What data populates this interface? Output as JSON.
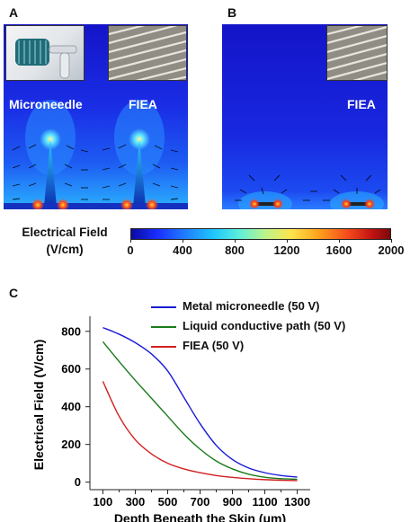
{
  "panels": {
    "a": {
      "letter": "A",
      "label_left": "Microneedle",
      "label_right": "FIEA"
    },
    "b": {
      "letter": "B",
      "label_right": "FIEA"
    },
    "c": {
      "letter": "C"
    }
  },
  "colorbar": {
    "title_line1": "Electrical Field",
    "title_line2": "(V/cm)",
    "ticks": [
      "0",
      "400",
      "800",
      "1200",
      "1600",
      "2000"
    ],
    "range": [
      0,
      2000
    ]
  },
  "chart_data": {
    "type": "line",
    "xlabel": "Depth Beneath the Skin (μm)",
    "ylabel": "Electrical Field (V/cm)",
    "x": [
      100,
      200,
      300,
      400,
      500,
      600,
      700,
      800,
      900,
      1000,
      1100,
      1200,
      1300
    ],
    "xticks": [
      100,
      300,
      500,
      700,
      900,
      1100,
      1300
    ],
    "yticks": [
      0,
      200,
      400,
      600,
      800
    ],
    "xlim": [
      20,
      1380
    ],
    "ylim": [
      -40,
      880
    ],
    "series": [
      {
        "name": "Metal microneedle (50 V)",
        "color": "#1a1ad6",
        "values": [
          820,
          785,
          740,
          680,
          590,
          450,
          310,
          195,
          120,
          75,
          50,
          35,
          27
        ]
      },
      {
        "name": "Liquid conductive path (50 V)",
        "color": "#1a7a1a",
        "values": [
          745,
          640,
          540,
          445,
          350,
          255,
          175,
          112,
          70,
          42,
          26,
          18,
          15
        ]
      },
      {
        "name": "FIEA (50 V)",
        "color": "#d01f1f",
        "values": [
          535,
          350,
          225,
          150,
          100,
          70,
          50,
          35,
          25,
          18,
          13,
          10,
          8
        ]
      }
    ]
  }
}
